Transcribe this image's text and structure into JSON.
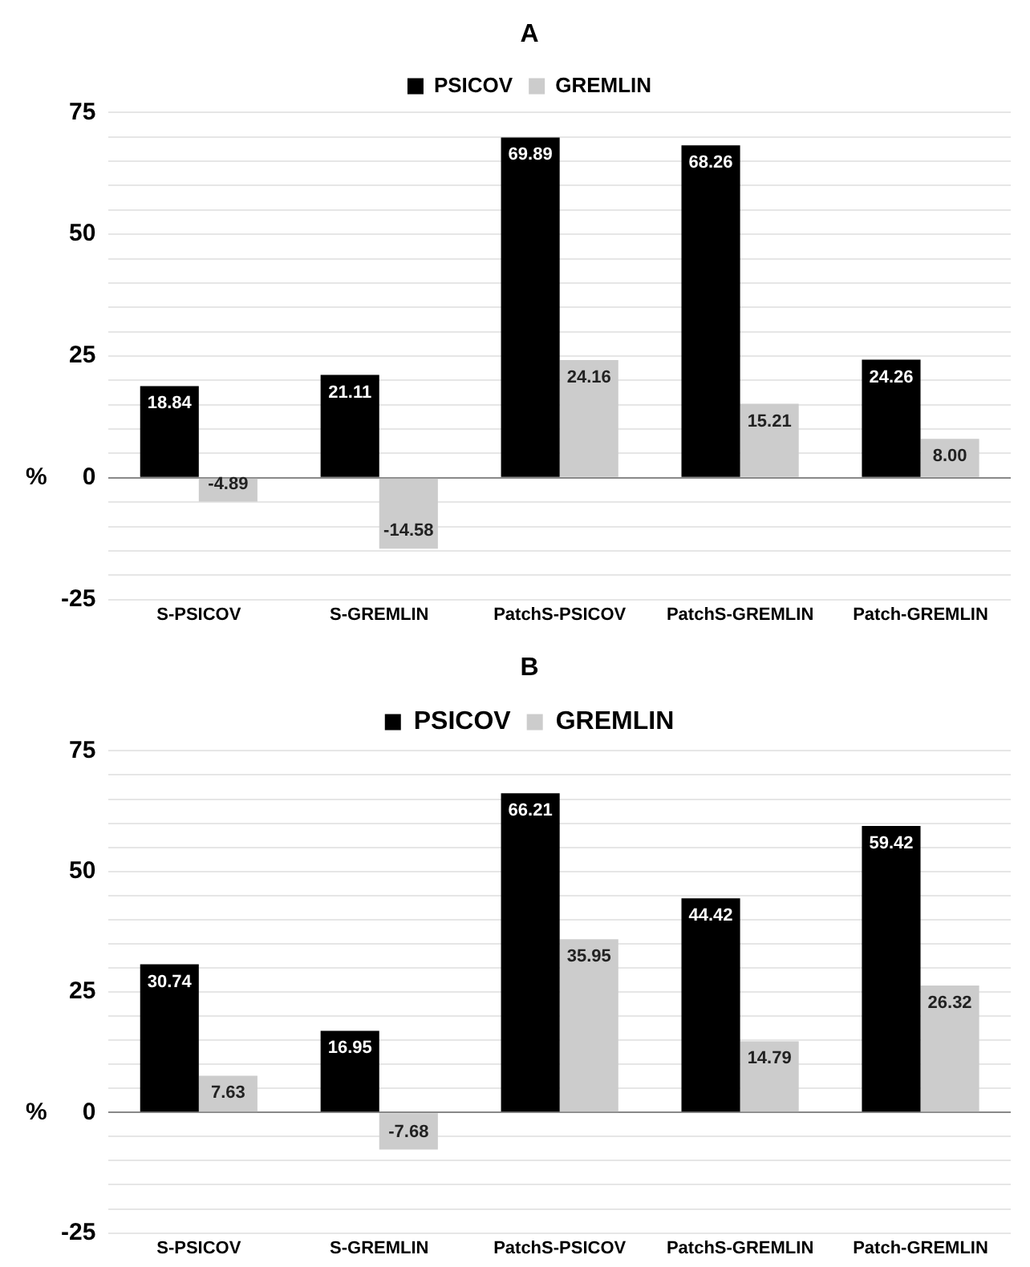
{
  "chart_data": [
    {
      "type": "bar",
      "title": "A",
      "ylabel": "%",
      "categories": [
        "S-PSICOV",
        "S-GREMLIN",
        "PatchS-PSICOV",
        "PatchS-GREMLIN",
        "Patch-GREMLIN"
      ],
      "series": [
        {
          "name": "PSICOV",
          "color": "#000000",
          "values": [
            18.84,
            21.11,
            69.89,
            68.26,
            24.26
          ],
          "value_labels": [
            "18.84",
            "21.11",
            "69.89",
            "68.26",
            "24.26"
          ]
        },
        {
          "name": "GREMLIN",
          "color": "#cccccc",
          "values": [
            -4.89,
            -14.58,
            24.16,
            15.21,
            8.0
          ],
          "value_labels": [
            "-4.89",
            "-14.58",
            "24.16",
            "15.21",
            "8.00"
          ]
        }
      ],
      "ylim": [
        -25,
        75
      ],
      "yticks": [
        -25,
        {
          "value": -20,
          "label": null
        },
        {
          "value": -15,
          "label": null
        },
        {
          "value": -10,
          "label": null
        },
        {
          "value": -5,
          "label": null
        },
        0,
        {
          "value": 5,
          "label": null
        },
        {
          "value": 10,
          "label": null
        },
        {
          "value": 15,
          "label": null
        },
        {
          "value": 20,
          "label": null
        },
        25,
        {
          "value": 30,
          "label": null
        },
        {
          "value": 35,
          "label": null
        },
        {
          "value": 40,
          "label": null
        },
        {
          "value": 45,
          "label": null
        },
        50,
        {
          "value": 55,
          "label": null
        },
        {
          "value": 60,
          "label": null
        },
        {
          "value": 65,
          "label": null
        },
        {
          "value": 70,
          "label": null
        },
        75
      ],
      "grid": "y",
      "legend": "top"
    },
    {
      "type": "bar",
      "title": "B",
      "ylabel": "%",
      "categories": [
        "S-PSICOV",
        "S-GREMLIN",
        "PatchS-PSICOV",
        "PatchS-GREMLIN",
        "Patch-GREMLIN"
      ],
      "series": [
        {
          "name": "PSICOV",
          "color": "#000000",
          "values": [
            30.74,
            16.95,
            66.21,
            44.42,
            59.42
          ],
          "value_labels": [
            "30.74",
            "16.95",
            "66.21",
            "44.42",
            "59.42"
          ]
        },
        {
          "name": "GREMLIN",
          "color": "#cccccc",
          "values": [
            7.63,
            -7.68,
            35.95,
            14.79,
            26.32
          ],
          "value_labels": [
            "7.63",
            "-7.68",
            "35.95",
            "14.79",
            "26.32"
          ]
        }
      ],
      "ylim": [
        -25,
        75
      ],
      "yticks": [
        -25,
        {
          "value": -20,
          "label": null
        },
        {
          "value": -15,
          "label": null
        },
        {
          "value": -10,
          "label": null
        },
        {
          "value": -5,
          "label": null
        },
        0,
        {
          "value": 5,
          "label": null
        },
        {
          "value": 10,
          "label": null
        },
        {
          "value": 15,
          "label": null
        },
        {
          "value": 20,
          "label": null
        },
        25,
        {
          "value": 30,
          "label": null
        },
        {
          "value": 35,
          "label": null
        },
        {
          "value": 40,
          "label": null
        },
        {
          "value": 45,
          "label": null
        },
        50,
        {
          "value": 55,
          "label": null
        },
        {
          "value": 60,
          "label": null
        },
        {
          "value": 65,
          "label": null
        },
        {
          "value": 70,
          "label": null
        },
        75
      ],
      "grid": "y",
      "legend": "top"
    }
  ]
}
